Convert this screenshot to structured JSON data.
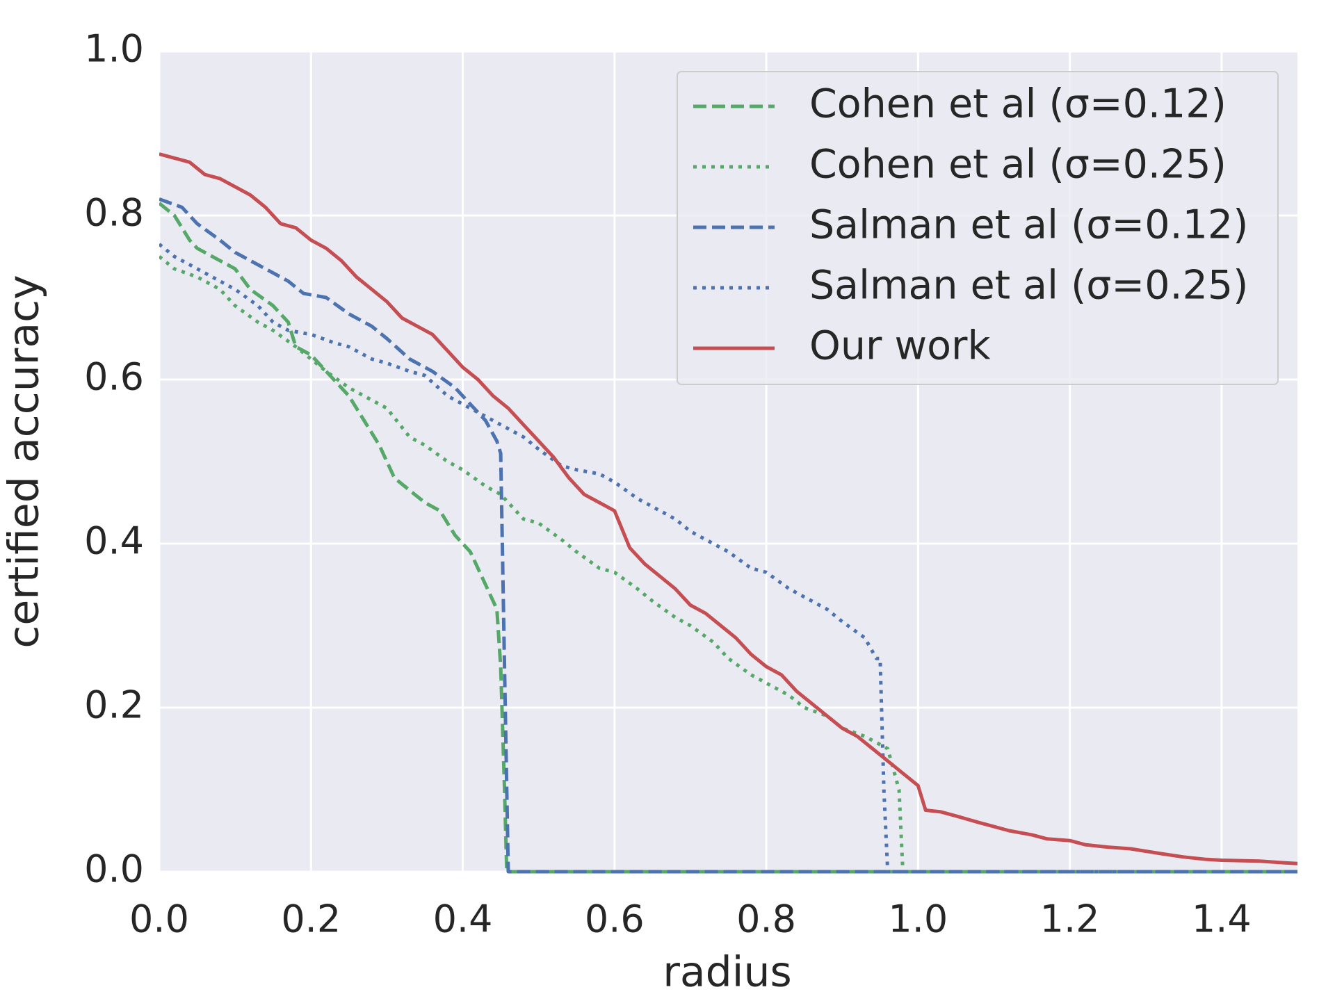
{
  "chart_data": {
    "type": "line",
    "xlabel": "radius",
    "ylabel": "certified accuracy",
    "xlim": [
      0,
      1.5
    ],
    "ylim": [
      0,
      1
    ],
    "xticks": [
      {
        "value": 0,
        "label": "0.0"
      },
      0.2,
      0.4,
      0.6,
      0.8,
      {
        "value": 1,
        "label": "1.0"
      },
      1.2,
      1.4
    ],
    "yticks": [
      {
        "value": 0,
        "label": "0.0"
      },
      0.2,
      0.4,
      0.6,
      0.8,
      {
        "value": 1,
        "label": "1.0"
      }
    ],
    "grid": true,
    "background": "#eaeaf2",
    "legend": "upper right",
    "series": [
      {
        "name": "Cohen et al (σ=0.12)",
        "color": "#55a868",
        "style": "dashed",
        "x": [
          0,
          0.02,
          0.04,
          0.05,
          0.08,
          0.1,
          0.12,
          0.15,
          0.17,
          0.18,
          0.2,
          0.22,
          0.25,
          0.27,
          0.29,
          0.31,
          0.33,
          0.35,
          0.37,
          0.39,
          0.41,
          0.43,
          0.445,
          0.45,
          0.455,
          0.458,
          1.5
        ],
        "values": [
          0.815,
          0.8,
          0.77,
          0.76,
          0.745,
          0.735,
          0.71,
          0.69,
          0.67,
          0.64,
          0.63,
          0.61,
          0.58,
          0.55,
          0.52,
          0.48,
          0.465,
          0.45,
          0.44,
          0.41,
          0.39,
          0.35,
          0.32,
          0.25,
          0.1,
          0,
          0
        ]
      },
      {
        "name": "Cohen et al (σ=0.25)",
        "color": "#55a868",
        "style": "dotted",
        "x": [
          0,
          0.02,
          0.05,
          0.08,
          0.1,
          0.13,
          0.15,
          0.18,
          0.2,
          0.22,
          0.25,
          0.28,
          0.3,
          0.33,
          0.35,
          0.38,
          0.4,
          0.43,
          0.45,
          0.48,
          0.5,
          0.53,
          0.55,
          0.58,
          0.6,
          0.63,
          0.65,
          0.68,
          0.7,
          0.73,
          0.75,
          0.78,
          0.8,
          0.83,
          0.85,
          0.88,
          0.9,
          0.93,
          0.96,
          0.975,
          0.98,
          1.5
        ],
        "values": [
          0.75,
          0.735,
          0.725,
          0.71,
          0.69,
          0.67,
          0.66,
          0.64,
          0.625,
          0.61,
          0.59,
          0.575,
          0.565,
          0.53,
          0.52,
          0.5,
          0.49,
          0.47,
          0.46,
          0.43,
          0.425,
          0.405,
          0.39,
          0.37,
          0.365,
          0.345,
          0.33,
          0.31,
          0.3,
          0.28,
          0.26,
          0.24,
          0.23,
          0.215,
          0.2,
          0.19,
          0.175,
          0.165,
          0.15,
          0.1,
          0,
          0
        ]
      },
      {
        "name": "Salman et al (σ=0.12)",
        "color": "#4c72b0",
        "style": "dashed",
        "x": [
          0,
          0.03,
          0.05,
          0.08,
          0.1,
          0.13,
          0.15,
          0.17,
          0.19,
          0.22,
          0.25,
          0.28,
          0.3,
          0.33,
          0.36,
          0.39,
          0.41,
          0.43,
          0.445,
          0.45,
          0.455,
          0.46,
          1.5
        ],
        "values": [
          0.82,
          0.81,
          0.79,
          0.77,
          0.755,
          0.74,
          0.73,
          0.72,
          0.705,
          0.7,
          0.68,
          0.665,
          0.65,
          0.625,
          0.61,
          0.59,
          0.57,
          0.55,
          0.525,
          0.51,
          0.25,
          0,
          0
        ]
      },
      {
        "name": "Salman et al (σ=0.25)",
        "color": "#4c72b0",
        "style": "dotted",
        "x": [
          0,
          0.02,
          0.05,
          0.08,
          0.1,
          0.13,
          0.15,
          0.17,
          0.2,
          0.23,
          0.25,
          0.28,
          0.3,
          0.33,
          0.35,
          0.38,
          0.4,
          0.43,
          0.45,
          0.48,
          0.5,
          0.53,
          0.55,
          0.58,
          0.6,
          0.63,
          0.65,
          0.68,
          0.7,
          0.73,
          0.75,
          0.78,
          0.8,
          0.83,
          0.85,
          0.88,
          0.9,
          0.93,
          0.945,
          0.95,
          0.955,
          0.96,
          1.5
        ],
        "values": [
          0.765,
          0.75,
          0.735,
          0.72,
          0.71,
          0.69,
          0.67,
          0.66,
          0.655,
          0.645,
          0.64,
          0.625,
          0.62,
          0.61,
          0.605,
          0.58,
          0.57,
          0.555,
          0.545,
          0.53,
          0.515,
          0.495,
          0.49,
          0.485,
          0.475,
          0.455,
          0.445,
          0.43,
          0.415,
          0.4,
          0.39,
          0.37,
          0.365,
          0.345,
          0.335,
          0.32,
          0.305,
          0.285,
          0.26,
          0.26,
          0.1,
          0,
          0
        ]
      },
      {
        "name": "Our work",
        "color": "#c44e52",
        "style": "solid",
        "x": [
          0,
          0.02,
          0.04,
          0.06,
          0.08,
          0.1,
          0.12,
          0.14,
          0.16,
          0.18,
          0.2,
          0.22,
          0.24,
          0.26,
          0.28,
          0.3,
          0.32,
          0.34,
          0.36,
          0.38,
          0.4,
          0.42,
          0.44,
          0.46,
          0.48,
          0.5,
          0.52,
          0.54,
          0.56,
          0.58,
          0.6,
          0.62,
          0.64,
          0.66,
          0.68,
          0.7,
          0.72,
          0.74,
          0.76,
          0.78,
          0.8,
          0.82,
          0.84,
          0.86,
          0.88,
          0.9,
          0.92,
          0.94,
          0.96,
          0.98,
          1.0,
          1.01,
          1.03,
          1.05,
          1.08,
          1.1,
          1.12,
          1.15,
          1.17,
          1.2,
          1.22,
          1.25,
          1.28,
          1.3,
          1.32,
          1.35,
          1.38,
          1.4,
          1.45,
          1.48,
          1.5
        ],
        "values": [
          0.875,
          0.87,
          0.865,
          0.85,
          0.845,
          0.835,
          0.825,
          0.81,
          0.79,
          0.785,
          0.77,
          0.76,
          0.745,
          0.725,
          0.71,
          0.695,
          0.675,
          0.665,
          0.655,
          0.635,
          0.615,
          0.6,
          0.58,
          0.565,
          0.545,
          0.525,
          0.505,
          0.48,
          0.46,
          0.45,
          0.44,
          0.395,
          0.375,
          0.36,
          0.345,
          0.325,
          0.315,
          0.3,
          0.285,
          0.265,
          0.25,
          0.24,
          0.22,
          0.205,
          0.19,
          0.175,
          0.165,
          0.15,
          0.135,
          0.12,
          0.105,
          0.075,
          0.073,
          0.068,
          0.06,
          0.055,
          0.05,
          0.045,
          0.04,
          0.038,
          0.033,
          0.03,
          0.028,
          0.025,
          0.022,
          0.018,
          0.015,
          0.014,
          0.013,
          0.011,
          0.01
        ]
      }
    ]
  }
}
